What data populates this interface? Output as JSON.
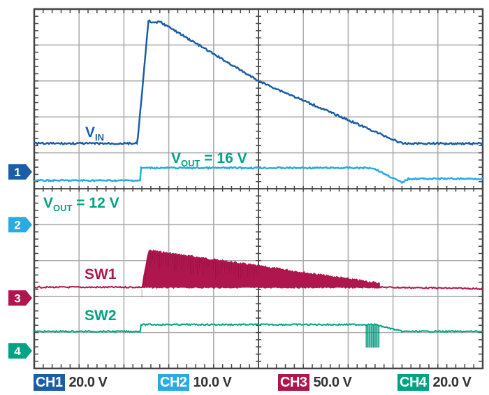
{
  "chart_data": {
    "type": "line",
    "title": "",
    "grid": true,
    "x_divisions": 10,
    "y_divisions": 10,
    "xlim": [
      0,
      10
    ],
    "ylim": [
      0,
      10
    ],
    "series": [
      {
        "id": "ch1",
        "name": "VIN",
        "color": "#1b5ea6",
        "ground_level_div": 5.47,
        "x": [
          0,
          2.3,
          2.55,
          2.65,
          2.8,
          3.0,
          5.0,
          8.2,
          10
        ],
        "y": [
          6.26,
          6.26,
          9.7,
          9.6,
          9.65,
          9.5,
          8.0,
          6.26,
          6.26
        ]
      },
      {
        "id": "ch2",
        "name": "VOUT = 16 V",
        "color": "#29abe2",
        "ground_level_div": 4.0,
        "x": [
          0,
          2.36,
          2.37,
          7.55,
          8.2,
          8.35,
          10
        ],
        "y": [
          5.23,
          5.23,
          5.58,
          5.58,
          5.17,
          5.28,
          5.28
        ]
      },
      {
        "id": "ch3",
        "name": "SW1",
        "color": "#b0164e",
        "ground_level_div": 1.96,
        "baseline": 2.26,
        "envelope_x": [
          2.4,
          2.55,
          7.7
        ],
        "envelope_top": [
          2.26,
          3.29,
          2.37
        ],
        "x": [
          0,
          2.4,
          7.7,
          10
        ],
        "y": [
          2.26,
          2.26,
          2.26,
          2.22
        ]
      },
      {
        "id": "ch4",
        "name": "SW2",
        "color": "#00a384",
        "ground_level_div": 0.49,
        "x": [
          0,
          2.36,
          2.37,
          7.6,
          8.2,
          10
        ],
        "y": [
          1.03,
          1.03,
          1.22,
          1.22,
          1.03,
          1.03
        ],
        "pulse_x": [
          7.4,
          7.7
        ],
        "pulse_low": 0.58
      }
    ],
    "annotations": [
      {
        "text_main": "V",
        "text_sub": "IN",
        "text_rest": "",
        "color": "#1b5ea6"
      },
      {
        "text_main": "V",
        "text_sub": "OUT",
        "text_rest": " = 16 V",
        "color": "#00a384"
      },
      {
        "text_main": "V",
        "text_sub": "OUT",
        "text_rest": " = 12 V",
        "color": "#00a384"
      },
      {
        "text_main": "SW1",
        "text_sub": "",
        "text_rest": "",
        "color": "#b0164e"
      },
      {
        "text_main": "SW2",
        "text_sub": "",
        "text_rest": "",
        "color": "#00a384"
      }
    ],
    "channel_markers": [
      {
        "label": "1",
        "color": "#1b5ea6"
      },
      {
        "label": "2",
        "color": "#29abe2"
      },
      {
        "label": "3",
        "color": "#b0164e"
      },
      {
        "label": "4",
        "color": "#00a384"
      }
    ]
  },
  "footer": {
    "channels": [
      {
        "tag": "CH1",
        "scale": "20.0 V",
        "color": "#1b5ea6"
      },
      {
        "tag": "CH2",
        "scale": "10.0 V",
        "color": "#29abe2"
      },
      {
        "tag": "CH3",
        "scale": "50.0 V",
        "color": "#b0164e"
      },
      {
        "tag": "CH4",
        "scale": "20.0 V",
        "color": "#00a384"
      }
    ]
  }
}
